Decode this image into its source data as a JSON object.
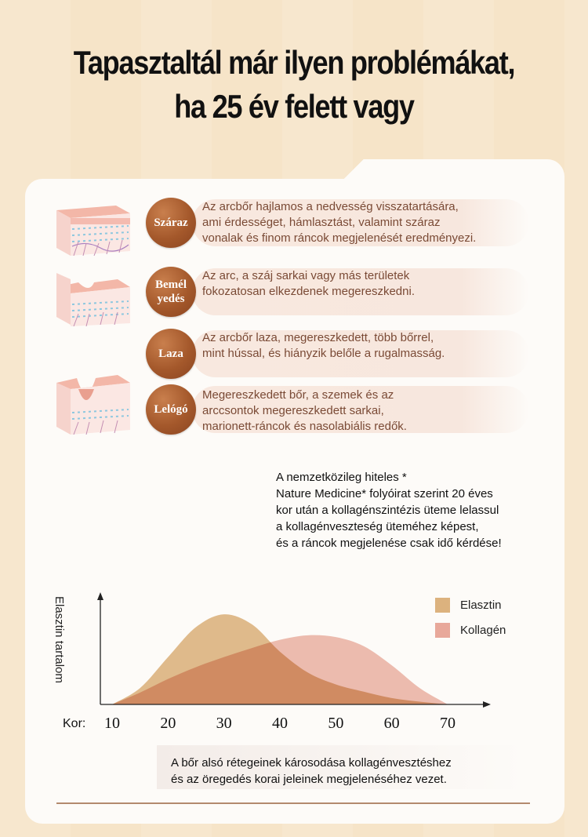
{
  "headline": {
    "line1": "Tapasztaltál már ilyen problémákat,",
    "line2": "ha 25 év felett vagy"
  },
  "problems": [
    {
      "badge": "Száraz",
      "text": "Az arcbőr hajlamos a nedvesség visszatartására,\nami érdességet, hámlasztást, valamint száraz\nvonalak és finom ráncok megjelenését eredményezi.",
      "skin": "flat"
    },
    {
      "badge": "Bemél yedés",
      "text": "Az arc, a száj sarkai vagy más területek\nfokozatosan elkezdenek megereszkedni.",
      "skin": "shallow-dip"
    },
    {
      "badge": "Laza",
      "text": "Az arcbőr laza, megereszkedett, több bőrrel,\nmint hússal, és hiányzik belőle a rugalmasság.",
      "skin": "shallow-dip"
    },
    {
      "badge": "Lelógó",
      "text": "Megereszkedett bőr, a szemek és az\narccsontok megereszkedett sarkai,\nmarionett-ráncok és nasolabiális redők.",
      "skin": "deep-fold"
    }
  ],
  "note": "A nemzetközileg hiteles *\nNature Medicine* folyóirat szerint 20 éves\nkor után a kollagénszintézis üteme lelassul\na kollagénveszteség üteméhez képest,\nés a ráncok megjelenése csak idő kérdése!",
  "chart_data": {
    "type": "area",
    "ylabel": "Elasztin tartalom",
    "xlabel_prefix": "Kor:",
    "x_ticks": [
      10,
      20,
      30,
      40,
      50,
      60,
      70
    ],
    "xlim": [
      5,
      80
    ],
    "ylim": [
      0,
      1
    ],
    "y_ticks_shown": false,
    "legend_position": "right",
    "series": [
      {
        "name": "Elasztin",
        "color": "#dcb27e",
        "points": [
          [
            10,
            0.0
          ],
          [
            15,
            0.18
          ],
          [
            20,
            0.52
          ],
          [
            25,
            0.85
          ],
          [
            30,
            0.99
          ],
          [
            35,
            0.88
          ],
          [
            40,
            0.58
          ],
          [
            45,
            0.35
          ],
          [
            50,
            0.22
          ],
          [
            55,
            0.14
          ],
          [
            60,
            0.07
          ],
          [
            65,
            0.03
          ],
          [
            70,
            0.0
          ]
        ]
      },
      {
        "name": "Kollagén",
        "color": "#e8a89a",
        "points": [
          [
            10,
            0.0
          ],
          [
            15,
            0.13
          ],
          [
            20,
            0.28
          ],
          [
            25,
            0.41
          ],
          [
            30,
            0.52
          ],
          [
            35,
            0.62
          ],
          [
            40,
            0.71
          ],
          [
            45,
            0.76
          ],
          [
            50,
            0.74
          ],
          [
            55,
            0.64
          ],
          [
            60,
            0.43
          ],
          [
            65,
            0.18
          ],
          [
            70,
            0.0
          ]
        ]
      }
    ]
  },
  "footer": "A bőr alsó rétegeinek károsodása kollagénvesztéshez\nés az öregedés korai jeleinek megjelenéséhez vezet.",
  "colors": {
    "badge": "#a4582b",
    "pill": "#f8e8df",
    "overlap": "#d9805f",
    "rule": "#b38a6e"
  }
}
